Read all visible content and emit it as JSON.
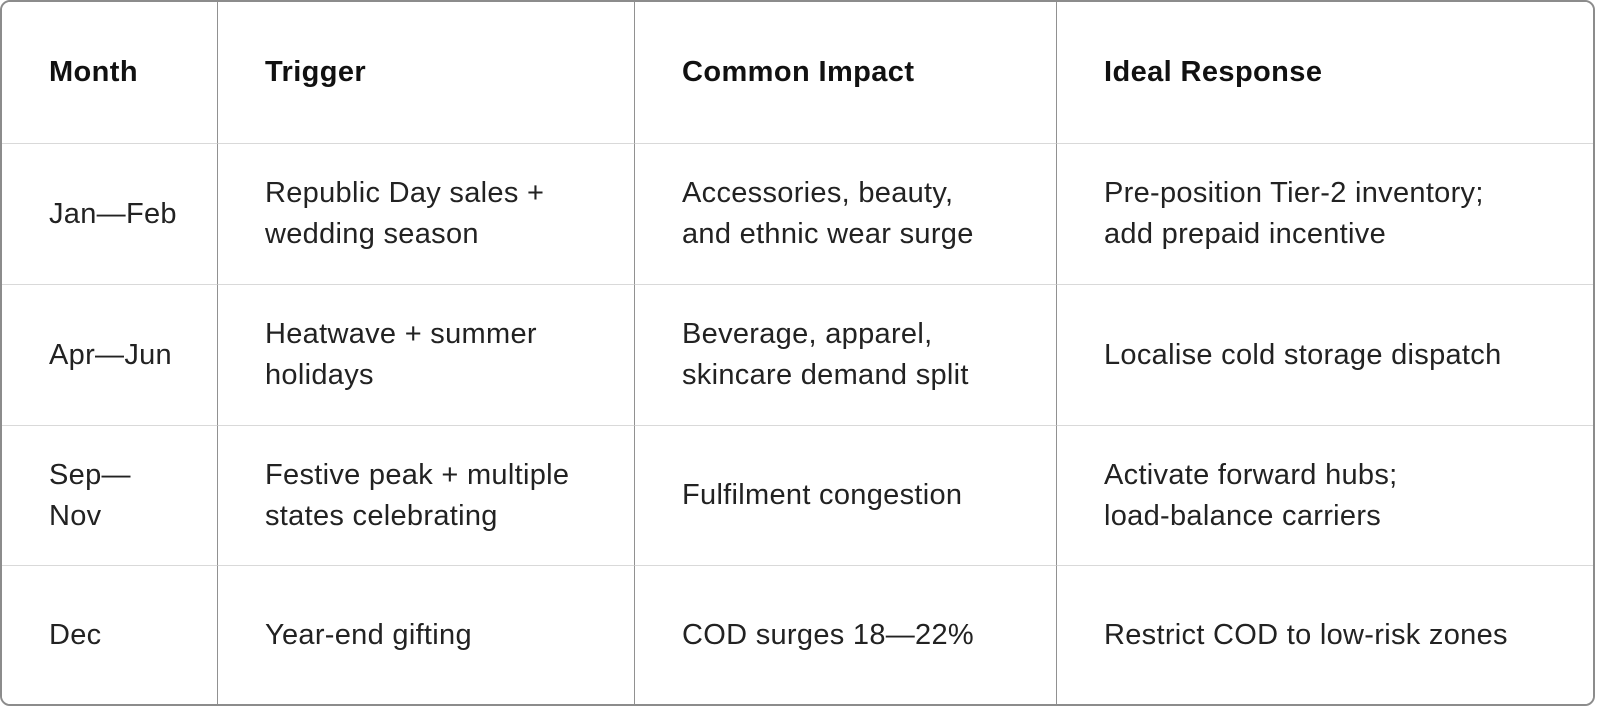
{
  "table": {
    "columns": [
      "Month",
      "Trigger",
      "Common Impact",
      "Ideal Response"
    ],
    "rows": [
      [
        "Jan—Feb",
        "Republic Day sales +\nwedding season",
        "Accessories, beauty,\nand ethnic wear surge",
        "Pre-position Tier-2 inventory;\nadd prepaid incentive"
      ],
      [
        "Apr—Jun",
        "Heatwave + summer\nholidays",
        "Beverage, apparel,\nskincare demand split",
        "Localise cold storage dispatch"
      ],
      [
        "Sep—Nov",
        "Festive peak + multiple\nstates celebrating",
        "Fulfilment congestion",
        "Activate forward hubs;\nload-balance carriers"
      ],
      [
        "Dec",
        "Year-end gifting",
        "COD surges 18—22%",
        "Restrict COD to low-risk zones"
      ]
    ]
  },
  "colors": {
    "background": "#ffffff",
    "outer_border": "#8c8c8c",
    "vertical_grid": "#919191",
    "horizontal_grid": "#d9d9d9",
    "header_text": "#111111",
    "body_text": "#222222"
  }
}
